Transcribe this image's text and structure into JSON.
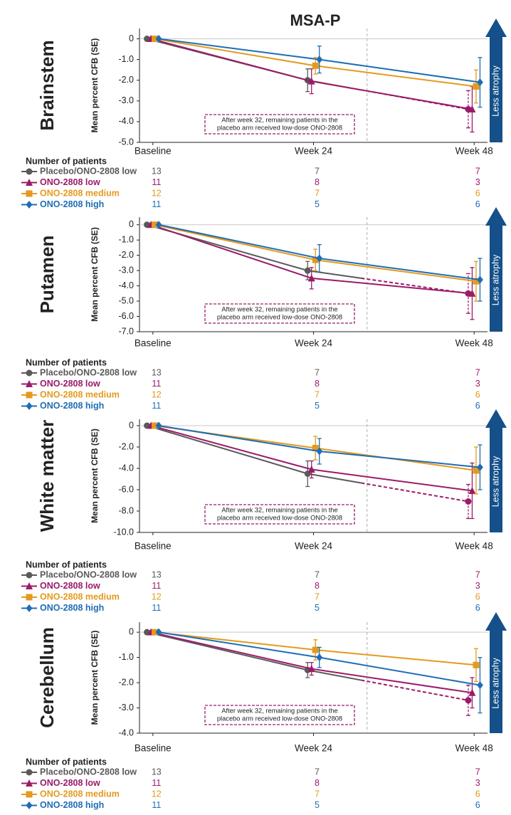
{
  "title": "MSA-P",
  "chart_data": [
    {
      "type": "line",
      "title": "Brainstem",
      "y_label": "Mean percent CFB (SE)",
      "x": [
        0,
        24,
        48
      ],
      "xlim": [
        -2,
        50
      ],
      "xticks": [
        {
          "value": 0,
          "label": "Baseline"
        },
        {
          "value": 24,
          "label": "Week 24"
        },
        {
          "value": 48,
          "label": "Week 48"
        }
      ],
      "ylim": [
        -5,
        0.5
      ],
      "yticks": [
        0,
        {
          "value": -1,
          "label": "-1.0"
        },
        {
          "value": -2,
          "label": "-2.0"
        },
        {
          "value": -3,
          "label": "-3.0"
        },
        {
          "value": -4,
          "label": "-4.0"
        },
        {
          "value": -5,
          "label": "-5.0"
        }
      ],
      "vline": 32,
      "annotation": [
        "After week 32, remaining patients in the",
        "placebo arm received low-dose ONO-2808"
      ],
      "arrow_label": "Less atrophy",
      "legend_title": "Number of patients",
      "series": [
        {
          "name": "Placebo/ONO-2808 low",
          "color": "#5a5a5a",
          "marker": "circle",
          "values": [
            0,
            -2.0,
            -3.4
          ],
          "errors": [
            null,
            0.55,
            0.9
          ],
          "patients": [
            13,
            7,
            7
          ],
          "after_vline": {
            "color": "#9b1b6a",
            "dashed": true
          }
        },
        {
          "name": "ONO-2808 low",
          "color": "#9b1b6a",
          "marker": "triangle",
          "values": [
            0,
            -2.05,
            -3.4
          ],
          "errors": [
            null,
            0.6,
            1.1
          ],
          "patients": [
            11,
            8,
            3
          ]
        },
        {
          "name": "ONO-2808 medium",
          "color": "#e39a1e",
          "marker": "square",
          "values": [
            0,
            -1.3,
            -2.3
          ],
          "errors": [
            null,
            0.4,
            0.8
          ],
          "patients": [
            12,
            7,
            6
          ]
        },
        {
          "name": "ONO-2808 high",
          "color": "#1f6db5",
          "marker": "diamond",
          "values": [
            0,
            -1.0,
            -2.1
          ],
          "errors": [
            null,
            0.65,
            1.2
          ],
          "patients": [
            11,
            5,
            6
          ]
        }
      ]
    },
    {
      "type": "line",
      "title": "Putamen",
      "y_label": "Mean percent CFB (SE)",
      "x": [
        0,
        24,
        48
      ],
      "xlim": [
        -2,
        50
      ],
      "xticks": [
        {
          "value": 0,
          "label": "Baseline"
        },
        {
          "value": 24,
          "label": "Week 24"
        },
        {
          "value": 48,
          "label": "Week 48"
        }
      ],
      "ylim": [
        -7,
        0.5
      ],
      "yticks": [
        0,
        {
          "value": -1,
          "label": "-1.0"
        },
        {
          "value": -2,
          "label": "-2.0"
        },
        {
          "value": -3,
          "label": "-3.0"
        },
        {
          "value": -4,
          "label": "-4.0"
        },
        {
          "value": -5,
          "label": "-5.0"
        },
        {
          "value": -6,
          "label": "-6.0"
        },
        {
          "value": -7,
          "label": "-7.0"
        }
      ],
      "vline": 32,
      "annotation": [
        "After week 32, remaining patients in the",
        "placebo arm received low-dose ONO-2808"
      ],
      "arrow_label": "Less atrophy",
      "legend_title": "Number of patients",
      "series": [
        {
          "name": "Placebo/ONO-2808 low",
          "color": "#5a5a5a",
          "marker": "circle",
          "values": [
            0,
            -3.0,
            -4.5
          ],
          "errors": [
            null,
            0.6,
            1.3
          ],
          "patients": [
            13,
            7,
            7
          ],
          "after_vline": {
            "color": "#9b1b6a",
            "dashed": true
          }
        },
        {
          "name": "ONO-2808 low",
          "color": "#9b1b6a",
          "marker": "triangle",
          "values": [
            0,
            -3.5,
            -4.5
          ],
          "errors": [
            null,
            0.7,
            1.7
          ],
          "patients": [
            11,
            8,
            3
          ]
        },
        {
          "name": "ONO-2808 medium",
          "color": "#e39a1e",
          "marker": "square",
          "values": [
            0,
            -2.3,
            -3.7
          ],
          "errors": [
            null,
            0.7,
            1.3
          ],
          "patients": [
            12,
            7,
            6
          ]
        },
        {
          "name": "ONO-2808 high",
          "color": "#1f6db5",
          "marker": "diamond",
          "values": [
            0,
            -2.2,
            -3.6
          ],
          "errors": [
            null,
            0.9,
            1.4
          ],
          "patients": [
            11,
            5,
            6
          ]
        }
      ]
    },
    {
      "type": "line",
      "title": "White matter",
      "y_label": "Mean percent CFB (SE)",
      "x": [
        0,
        24,
        48
      ],
      "xlim": [
        -2,
        50
      ],
      "xticks": [
        {
          "value": 0,
          "label": "Baseline"
        },
        {
          "value": 24,
          "label": "Week 24"
        },
        {
          "value": 48,
          "label": "Week 48"
        }
      ],
      "ylim": [
        -10,
        0.6
      ],
      "yticks": [
        0,
        {
          "value": -2,
          "label": "-2.0"
        },
        {
          "value": -4,
          "label": "-4.0"
        },
        {
          "value": -6,
          "label": "-6.0"
        },
        {
          "value": -8,
          "label": "-8.0"
        },
        {
          "value": -10,
          "label": "-10.0"
        }
      ],
      "vline": 32,
      "annotation": [
        "After week 32, remaining patients in the",
        "placebo arm received low-dose ONO-2808"
      ],
      "arrow_label": "Less atrophy",
      "legend_title": "Number of patients",
      "series": [
        {
          "name": "Placebo/ONO-2808 low",
          "color": "#5a5a5a",
          "marker": "circle",
          "values": [
            0,
            -4.5,
            -7.1
          ],
          "errors": [
            null,
            1.2,
            1.6
          ],
          "patients": [
            13,
            7,
            7
          ],
          "after_vline": {
            "color": "#9b1b6a",
            "dashed": true
          }
        },
        {
          "name": "ONO-2808 low",
          "color": "#9b1b6a",
          "marker": "triangle",
          "values": [
            0,
            -4.1,
            -6.1
          ],
          "errors": [
            null,
            0.8,
            2.6
          ],
          "patients": [
            11,
            8,
            3
          ]
        },
        {
          "name": "ONO-2808 medium",
          "color": "#e39a1e",
          "marker": "square",
          "values": [
            0,
            -2.1,
            -4.2
          ],
          "errors": [
            null,
            1.1,
            2.2
          ],
          "patients": [
            12,
            7,
            6
          ]
        },
        {
          "name": "ONO-2808 high",
          "color": "#1f6db5",
          "marker": "diamond",
          "values": [
            0,
            -2.4,
            -3.9
          ],
          "errors": [
            null,
            1.2,
            2.1
          ],
          "patients": [
            11,
            5,
            6
          ]
        }
      ]
    },
    {
      "type": "line",
      "title": "Cerebellum",
      "y_label": "Mean percent CFB (SE)",
      "x": [
        0,
        24,
        48
      ],
      "xlim": [
        -2,
        50
      ],
      "xticks": [
        {
          "value": 0,
          "label": "Baseline"
        },
        {
          "value": 24,
          "label": "Week 24"
        },
        {
          "value": 48,
          "label": "Week 48"
        }
      ],
      "ylim": [
        -4,
        0.4
      ],
      "yticks": [
        0,
        {
          "value": -1,
          "label": "-1.0"
        },
        {
          "value": -2,
          "label": "-2.0"
        },
        {
          "value": -3,
          "label": "-3.0"
        },
        {
          "value": -4,
          "label": "-4.0"
        }
      ],
      "vline": 32,
      "annotation": [
        "After week 32, remaining patients in the",
        "placebo arm received low-dose ONO-2808"
      ],
      "arrow_label": "Less atrophy",
      "legend_title": "Number of patients",
      "series": [
        {
          "name": "Placebo/ONO-2808 low",
          "color": "#5a5a5a",
          "marker": "circle",
          "values": [
            0,
            -1.5,
            -2.7
          ],
          "errors": [
            null,
            0.3,
            0.6
          ],
          "patients": [
            13,
            7,
            7
          ],
          "after_vline": {
            "color": "#9b1b6a",
            "dashed": true
          }
        },
        {
          "name": "ONO-2808 low",
          "color": "#9b1b6a",
          "marker": "triangle",
          "values": [
            0,
            -1.45,
            -2.4
          ],
          "errors": [
            null,
            0.25,
            0.6
          ],
          "patients": [
            11,
            8,
            3
          ]
        },
        {
          "name": "ONO-2808 medium",
          "color": "#e39a1e",
          "marker": "square",
          "values": [
            0,
            -0.7,
            -1.3
          ],
          "errors": [
            null,
            0.4,
            0.65
          ],
          "patients": [
            12,
            7,
            6
          ]
        },
        {
          "name": "ONO-2808 high",
          "color": "#1f6db5",
          "marker": "diamond",
          "values": [
            0,
            -1.0,
            -2.1
          ],
          "errors": [
            null,
            0.4,
            1.1
          ],
          "patients": [
            11,
            5,
            6
          ]
        }
      ]
    }
  ]
}
